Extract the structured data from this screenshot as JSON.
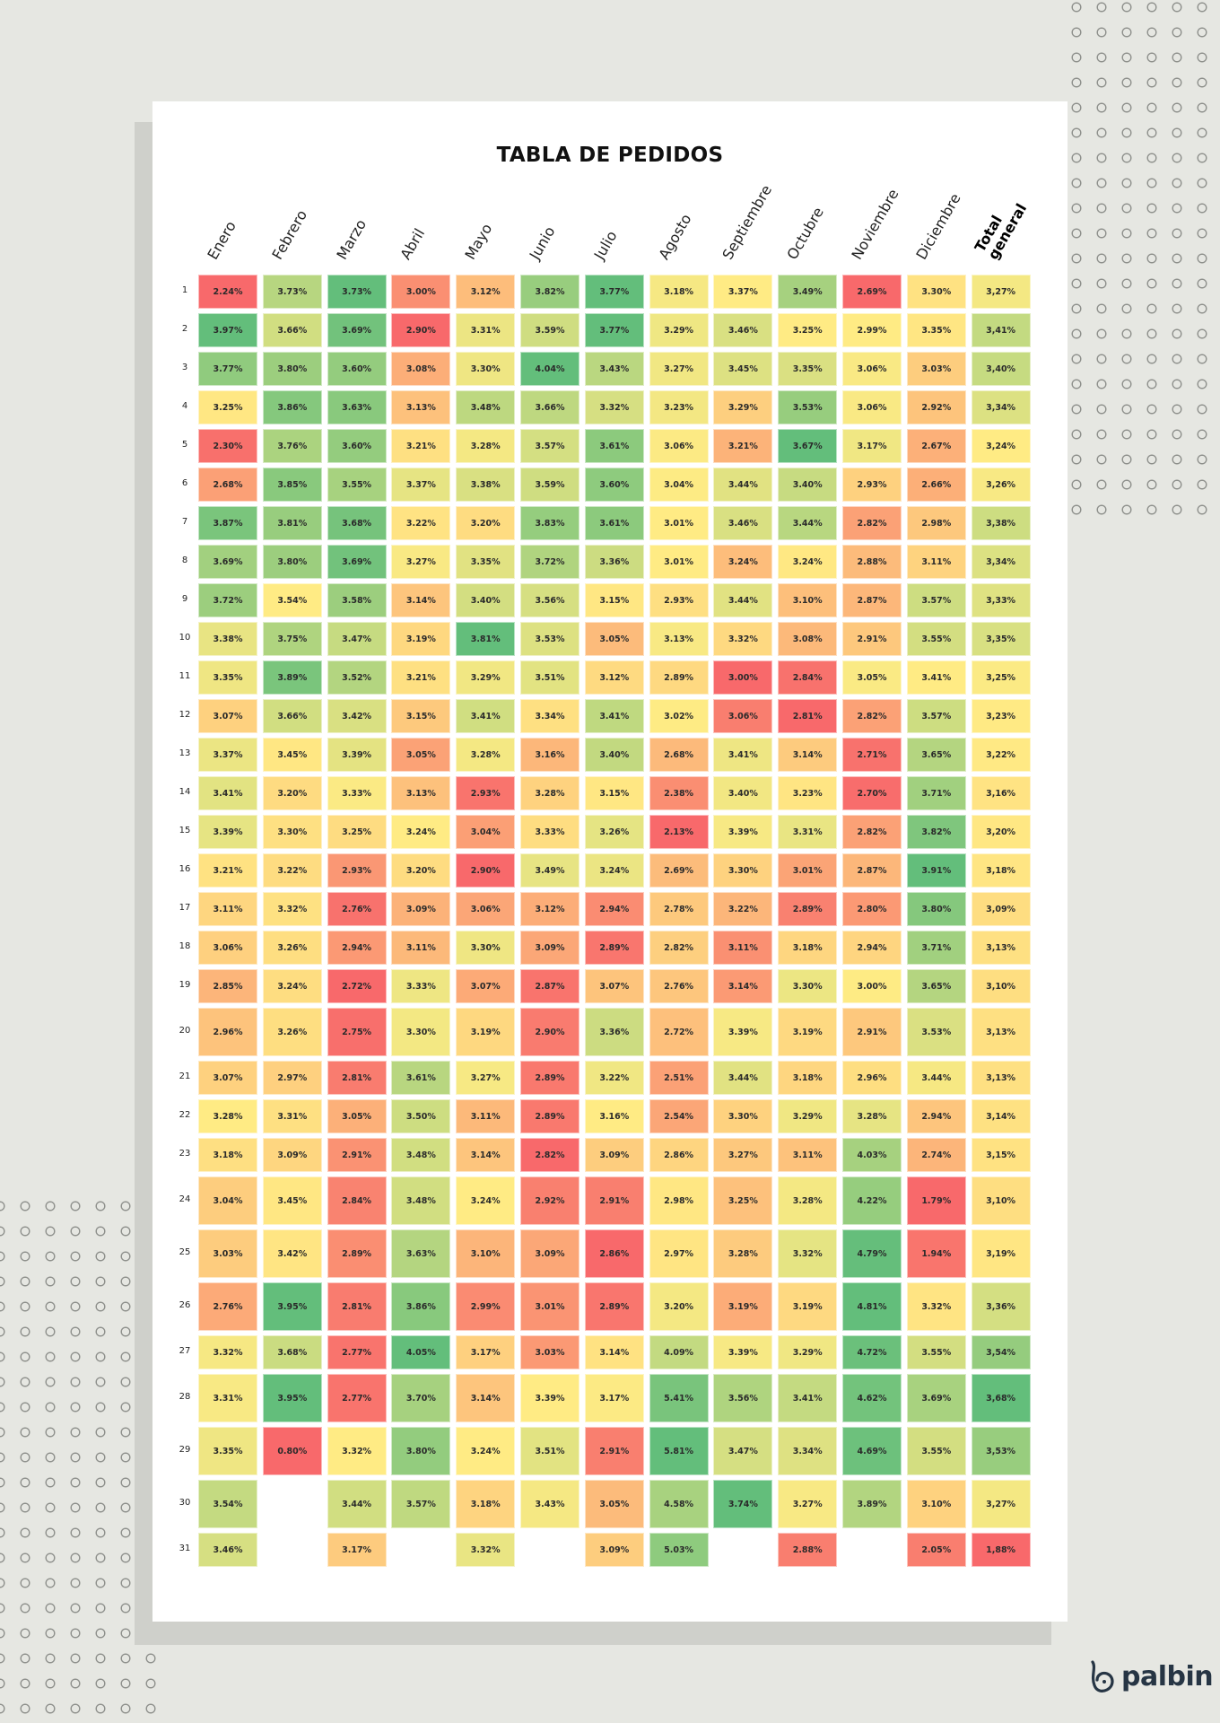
{
  "brand": "palbin",
  "chart_data": {
    "type": "heatmap",
    "title": "TABLA DE PEDIDOS",
    "columns": [
      "Enero",
      "Febrero",
      "Marzo",
      "Abril",
      "Mayo",
      "Junio",
      "Julio",
      "Agosto",
      "Septiembre",
      "Octubre",
      "Noviembre",
      "Diciembre",
      "Total general"
    ],
    "row_labels": [
      "1",
      "2",
      "3",
      "4",
      "5",
      "6",
      "7",
      "8",
      "9",
      "10",
      "11",
      "12",
      "13",
      "14",
      "15",
      "16",
      "17",
      "18",
      "19",
      "20",
      "21",
      "22",
      "23",
      "24",
      "25",
      "26",
      "27",
      "28",
      "29",
      "30",
      "31"
    ],
    "color_scale": {
      "low": "#f8696b",
      "mid": "#ffeb84",
      "high": "#63be7b"
    },
    "rows": [
      [
        "2.24%",
        "3.73%",
        "3.73%",
        "3.00%",
        "3.12%",
        "3.82%",
        "3.77%",
        "3.18%",
        "3.37%",
        "3.49%",
        "2.69%",
        "3.30%",
        "3,27%"
      ],
      [
        "3.97%",
        "3.66%",
        "3.69%",
        "2.90%",
        "3.31%",
        "3.59%",
        "3.77%",
        "3.29%",
        "3.46%",
        "3.25%",
        "2.99%",
        "3.35%",
        "3,41%"
      ],
      [
        "3.77%",
        "3.80%",
        "3.60%",
        "3.08%",
        "3.30%",
        "4.04%",
        "3.43%",
        "3.27%",
        "3.45%",
        "3.35%",
        "3.06%",
        "3.03%",
        "3,40%"
      ],
      [
        "3.25%",
        "3.86%",
        "3.63%",
        "3.13%",
        "3.48%",
        "3.66%",
        "3.32%",
        "3.23%",
        "3.29%",
        "3.53%",
        "3.06%",
        "2.92%",
        "3,34%"
      ],
      [
        "2.30%",
        "3.76%",
        "3.60%",
        "3.21%",
        "3.28%",
        "3.57%",
        "3.61%",
        "3.06%",
        "3.21%",
        "3.67%",
        "3.17%",
        "2.67%",
        "3,24%"
      ],
      [
        "2.68%",
        "3.85%",
        "3.55%",
        "3.37%",
        "3.38%",
        "3.59%",
        "3.60%",
        "3.04%",
        "3.44%",
        "3.40%",
        "2.93%",
        "2.66%",
        "3,26%"
      ],
      [
        "3.87%",
        "3.81%",
        "3.68%",
        "3.22%",
        "3.20%",
        "3.83%",
        "3.61%",
        "3.01%",
        "3.46%",
        "3.44%",
        "2.82%",
        "2.98%",
        "3,38%"
      ],
      [
        "3.69%",
        "3.80%",
        "3.69%",
        "3.27%",
        "3.35%",
        "3.72%",
        "3.36%",
        "3.01%",
        "3.24%",
        "3.24%",
        "2.88%",
        "3.11%",
        "3,34%"
      ],
      [
        "3.72%",
        "3.54%",
        "3.58%",
        "3.14%",
        "3.40%",
        "3.56%",
        "3.15%",
        "2.93%",
        "3.44%",
        "3.10%",
        "2.87%",
        "3.57%",
        "3,33%"
      ],
      [
        "3.38%",
        "3.75%",
        "3.47%",
        "3.19%",
        "3.81%",
        "3.53%",
        "3.05%",
        "3.13%",
        "3.32%",
        "3.08%",
        "2.91%",
        "3.55%",
        "3,35%"
      ],
      [
        "3.35%",
        "3.89%",
        "3.52%",
        "3.21%",
        "3.29%",
        "3.51%",
        "3.12%",
        "2.89%",
        "3.00%",
        "2.84%",
        "3.05%",
        "3.41%",
        "3,25%"
      ],
      [
        "3.07%",
        "3.66%",
        "3.42%",
        "3.15%",
        "3.41%",
        "3.34%",
        "3.41%",
        "3.02%",
        "3.06%",
        "2.81%",
        "2.82%",
        "3.57%",
        "3,23%"
      ],
      [
        "3.37%",
        "3.45%",
        "3.39%",
        "3.05%",
        "3.28%",
        "3.16%",
        "3.40%",
        "2.68%",
        "3.41%",
        "3.14%",
        "2.71%",
        "3.65%",
        "3,22%"
      ],
      [
        "3.41%",
        "3.20%",
        "3.33%",
        "3.13%",
        "2.93%",
        "3.28%",
        "3.15%",
        "2.38%",
        "3.40%",
        "3.23%",
        "2.70%",
        "3.71%",
        "3,16%"
      ],
      [
        "3.39%",
        "3.30%",
        "3.25%",
        "3.24%",
        "3.04%",
        "3.33%",
        "3.26%",
        "2.13%",
        "3.39%",
        "3.31%",
        "2.82%",
        "3.82%",
        "3,20%"
      ],
      [
        "3.21%",
        "3.22%",
        "2.93%",
        "3.20%",
        "2.90%",
        "3.49%",
        "3.24%",
        "2.69%",
        "3.30%",
        "3.01%",
        "2.87%",
        "3.91%",
        "3,18%"
      ],
      [
        "3.11%",
        "3.32%",
        "2.76%",
        "3.09%",
        "3.06%",
        "3.12%",
        "2.94%",
        "2.78%",
        "3.22%",
        "2.89%",
        "2.80%",
        "3.80%",
        "3,09%"
      ],
      [
        "3.06%",
        "3.26%",
        "2.94%",
        "3.11%",
        "3.30%",
        "3.09%",
        "2.89%",
        "2.82%",
        "3.11%",
        "3.18%",
        "2.94%",
        "3.71%",
        "3,13%"
      ],
      [
        "2.85%",
        "3.24%",
        "2.72%",
        "3.33%",
        "3.07%",
        "2.87%",
        "3.07%",
        "2.76%",
        "3.14%",
        "3.30%",
        "3.00%",
        "3.65%",
        "3,10%"
      ],
      [
        "2.96%",
        "3.26%",
        "2.75%",
        "3.30%",
        "3.19%",
        "2.90%",
        "3.36%",
        "2.72%",
        "3.39%",
        "3.19%",
        "2.91%",
        "3.53%",
        "3,13%"
      ],
      [
        "3.07%",
        "2.97%",
        "2.81%",
        "3.61%",
        "3.27%",
        "2.89%",
        "3.22%",
        "2.51%",
        "3.44%",
        "3.18%",
        "2.96%",
        "3.44%",
        "3,13%"
      ],
      [
        "3.28%",
        "3.31%",
        "3.05%",
        "3.50%",
        "3.11%",
        "2.89%",
        "3.16%",
        "2.54%",
        "3.30%",
        "3.29%",
        "3.28%",
        "2.94%",
        "3,14%"
      ],
      [
        "3.18%",
        "3.09%",
        "2.91%",
        "3.48%",
        "3.14%",
        "2.82%",
        "3.09%",
        "2.86%",
        "3.27%",
        "3.11%",
        "4.03%",
        "2.74%",
        "3,15%"
      ],
      [
        "3.04%",
        "3.45%",
        "2.84%",
        "3.48%",
        "3.24%",
        "2.92%",
        "2.91%",
        "2.98%",
        "3.25%",
        "3.28%",
        "4.22%",
        "1.79%",
        "3,10%"
      ],
      [
        "3.03%",
        "3.42%",
        "2.89%",
        "3.63%",
        "3.10%",
        "3.09%",
        "2.86%",
        "2.97%",
        "3.28%",
        "3.32%",
        "4.79%",
        "1.94%",
        "3,19%"
      ],
      [
        "2.76%",
        "3.95%",
        "2.81%",
        "3.86%",
        "2.99%",
        "3.01%",
        "2.89%",
        "3.20%",
        "3.19%",
        "3.19%",
        "4.81%",
        "3.32%",
        "3,36%"
      ],
      [
        "3.32%",
        "3.68%",
        "2.77%",
        "4.05%",
        "3.17%",
        "3.03%",
        "3.14%",
        "4.09%",
        "3.39%",
        "3.29%",
        "4.72%",
        "3.55%",
        "3,54%"
      ],
      [
        "3.31%",
        "3.95%",
        "2.77%",
        "3.70%",
        "3.14%",
        "3.39%",
        "3.17%",
        "5.41%",
        "3.56%",
        "3.41%",
        "4.62%",
        "3.69%",
        "3,68%"
      ],
      [
        "3.35%",
        "0.80%",
        "3.32%",
        "3.80%",
        "3.24%",
        "3.51%",
        "2.91%",
        "5.81%",
        "3.47%",
        "3.34%",
        "4.69%",
        "3.55%",
        "3,53%"
      ],
      [
        "3.54%",
        null,
        "3.44%",
        "3.57%",
        "3.18%",
        "3.43%",
        "3.05%",
        "4.58%",
        "3.74%",
        "3.27%",
        "3.89%",
        "3.10%",
        "3,27%"
      ],
      [
        "3.46%",
        null,
        "3.17%",
        null,
        "3.32%",
        null,
        "3.09%",
        "5.03%",
        null,
        "2.88%",
        null,
        "2.05%",
        "1,88%"
      ]
    ]
  }
}
